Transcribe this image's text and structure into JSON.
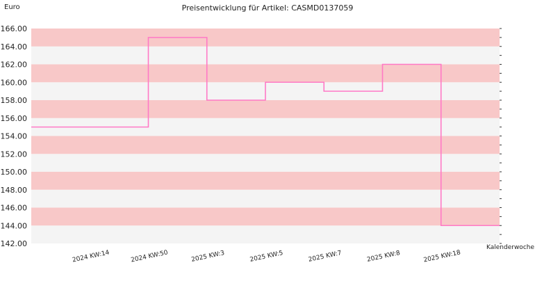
{
  "chart_data": {
    "type": "line",
    "step": true,
    "title": "Preisentwicklung für Artikel: CASMD0137059",
    "ylabel": "Euro",
    "xlabel": "Kalenderwoche",
    "ylim": [
      142,
      166
    ],
    "ytick_step": 2,
    "yticks": [
      "142.00",
      "144.00",
      "146.00",
      "148.00",
      "150.00",
      "152.00",
      "154.00",
      "156.00",
      "158.00",
      "160.00",
      "162.00",
      "164.00",
      "166.00"
    ],
    "x_tick_labels": [
      "2024 KW:14",
      "2024 KW:50",
      "2025 KW:3",
      "2025 KW:5",
      "2025 KW:7",
      "2025 KW:8",
      "2025 KW:18"
    ],
    "series": [
      {
        "values": [
          155.0,
          165.0,
          158.0,
          160.0,
          159.0,
          162.0,
          144.0
        ],
        "color": "#ff79c6"
      }
    ],
    "band_colors": [
      "#f8c8c8",
      "#f4f4f4"
    ],
    "grid": false
  }
}
